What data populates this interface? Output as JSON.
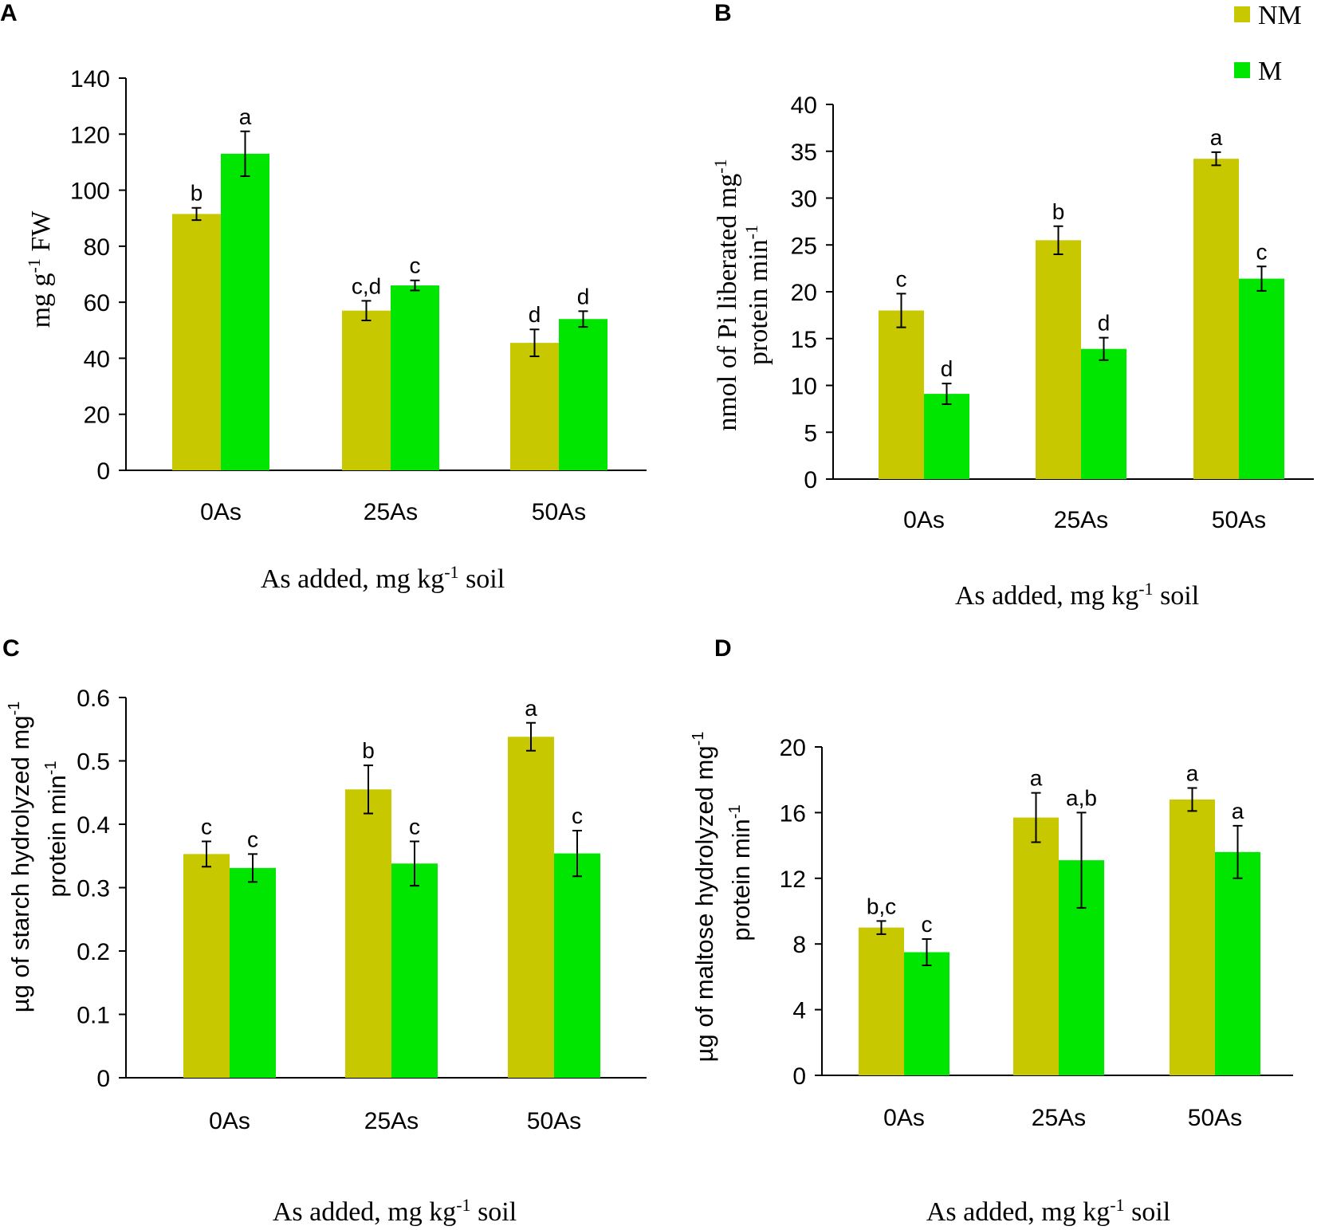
{
  "legend": {
    "series_names": [
      "NM",
      "M"
    ],
    "colors": [
      "#c8c800",
      "#00e600"
    ]
  },
  "chart_data": [
    {
      "panel": "A",
      "type": "bar",
      "categories": [
        "0As",
        "25As",
        "50As"
      ],
      "series": [
        {
          "name": "NM",
          "values": [
            91.5,
            57,
            45.5
          ],
          "errors": [
            2.2,
            3.5,
            4.8
          ],
          "sig": [
            "b",
            "c,d",
            "d"
          ]
        },
        {
          "name": "M",
          "values": [
            113,
            66,
            54
          ],
          "errors": [
            8,
            1.8,
            2.8
          ],
          "sig": [
            "a",
            "c",
            "d"
          ]
        }
      ],
      "ylim": [
        0,
        140
      ],
      "yticks": [
        "0",
        "20",
        "40",
        "60",
        "80",
        "100",
        "120",
        "140"
      ],
      "ylabel": {
        "pre": "mg g",
        "sup": "-1",
        "post": " FW"
      },
      "xlabel": {
        "pre": "As added, mg kg",
        "sup": "-1",
        "post": " soil"
      }
    },
    {
      "panel": "B",
      "type": "bar",
      "categories": [
        "0As",
        "25As",
        "50As"
      ],
      "series": [
        {
          "name": "NM",
          "values": [
            18,
            25.5,
            34.2
          ],
          "errors": [
            1.8,
            1.5,
            0.7
          ],
          "sig": [
            "c",
            "b",
            "a"
          ]
        },
        {
          "name": "M",
          "values": [
            9.1,
            13.9,
            21.4
          ],
          "errors": [
            1.1,
            1.2,
            1.3
          ],
          "sig": [
            "d",
            "d",
            "c"
          ]
        }
      ],
      "ylim": [
        0,
        40
      ],
      "yticks": [
        "0",
        "5",
        "10",
        "15",
        "20",
        "25",
        "30",
        "35",
        "40"
      ],
      "ylabel": {
        "line1_pre": "nmol of Pi liberated mg",
        "line1_sup": "-1",
        "line2_pre": "protein min",
        "line2_sup": "-1"
      },
      "xlabel": {
        "pre": "As added, mg kg",
        "sup": "-1",
        "post": " soil"
      }
    },
    {
      "panel": "C",
      "type": "bar",
      "categories": [
        "0As",
        "25As",
        "50As"
      ],
      "series": [
        {
          "name": "NM",
          "values": [
            0.353,
            0.455,
            0.538
          ],
          "errors": [
            0.02,
            0.038,
            0.022
          ],
          "sig": [
            "c",
            "b",
            "a"
          ]
        },
        {
          "name": "M",
          "values": [
            0.331,
            0.338,
            0.354
          ],
          "errors": [
            0.022,
            0.035,
            0.036
          ],
          "sig": [
            "c",
            "c",
            "c"
          ]
        }
      ],
      "ylim": [
        0,
        0.6
      ],
      "yticks": [
        "0",
        "0.1",
        "0.2",
        "0.3",
        "0.4",
        "0.5",
        "0.6"
      ],
      "ylabel": {
        "line1_pre": "µg of starch hydrolyzed mg",
        "line1_sup": "-1",
        "line2_pre": "protein min",
        "line2_sup": "-1"
      },
      "xlabel": {
        "pre": "As added, mg kg",
        "sup": "-1",
        "post": " soil"
      }
    },
    {
      "panel": "D",
      "type": "bar",
      "categories": [
        "0As",
        "25As",
        "50As"
      ],
      "series": [
        {
          "name": "NM",
          "values": [
            9.0,
            15.7,
            16.8
          ],
          "errors": [
            0.4,
            1.5,
            0.7
          ],
          "sig": [
            "b,c",
            "a",
            "a"
          ]
        },
        {
          "name": "M",
          "values": [
            7.5,
            13.1,
            13.6
          ],
          "errors": [
            0.8,
            2.9,
            1.6
          ],
          "sig": [
            "c",
            "a,b",
            "a"
          ]
        }
      ],
      "ylim": [
        0,
        20
      ],
      "yticks": [
        "0",
        "4",
        "8",
        "12",
        "16",
        "20"
      ],
      "ylabel": {
        "line1_pre": "µg of maltose hydrolyzed mg",
        "line1_sup": "-1",
        "line2_pre": "protein min",
        "line2_sup": "-1"
      },
      "xlabel": {
        "pre": "As added, mg kg",
        "sup": "-1",
        "post": " soil"
      }
    }
  ]
}
